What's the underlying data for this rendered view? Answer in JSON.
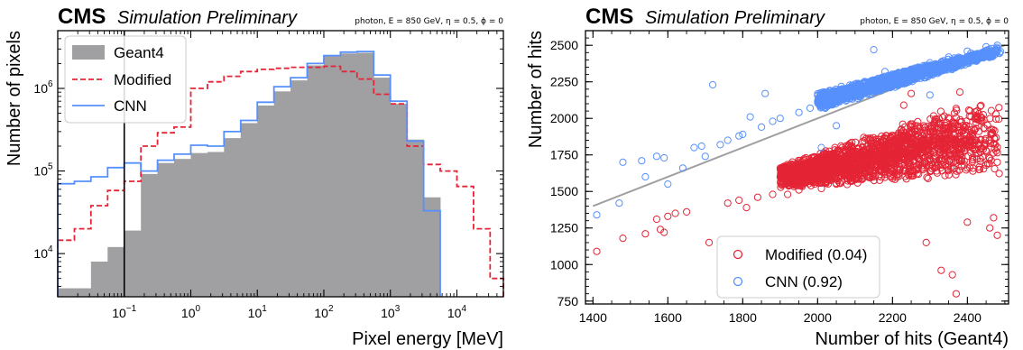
{
  "chart_data": [
    {
      "type": "histogram",
      "experiment": "CMS",
      "status": "Simulation Preliminary",
      "info": "photon, E = 850 GeV, η = 0.5, ϕ = 0",
      "xlabel": "Pixel energy [MeV]",
      "ylabel": "Number of pixels",
      "xscale": "log",
      "yscale": "log",
      "xlim": [
        0.01,
        50000
      ],
      "ylim": [
        3000,
        5000000
      ],
      "x_ticks": [
        {
          "value": 0.1,
          "base": "10",
          "exp": "−1"
        },
        {
          "value": 1,
          "base": "10",
          "exp": "0"
        },
        {
          "value": 10,
          "base": "10",
          "exp": "1"
        },
        {
          "value": 100,
          "base": "10",
          "exp": "2"
        },
        {
          "value": 1000,
          "base": "10",
          "exp": "3"
        },
        {
          "value": 10000,
          "base": "10",
          "exp": "4"
        }
      ],
      "y_ticks": [
        {
          "value": 10000,
          "base": "10",
          "exp": "4"
        },
        {
          "value": 100000,
          "base": "10",
          "exp": "5"
        },
        {
          "value": 1000000,
          "base": "10",
          "exp": "6"
        }
      ],
      "vline": 0.1,
      "bin_edges": [
        0.01,
        0.0178,
        0.0316,
        0.0562,
        0.1,
        0.178,
        0.316,
        0.562,
        1,
        1.78,
        3.16,
        5.62,
        10,
        17.8,
        31.6,
        56.2,
        100,
        178,
        316,
        562,
        1000,
        1780,
        3160,
        5620,
        10000,
        17800,
        31600,
        50000
      ],
      "legend_position": "upper-left",
      "series": [
        {
          "name": "Geant4",
          "style": "filled",
          "color": "#a09fa1",
          "values": [
            3800,
            3800,
            8000,
            12000,
            19000,
            92000,
            125000,
            140000,
            165000,
            170000,
            250000,
            380000,
            620000,
            920000,
            1250000,
            1900000,
            2450000,
            2650000,
            2700000,
            1350000,
            650000,
            240000,
            48000,
            null,
            null,
            null,
            null
          ]
        },
        {
          "name": "Modified",
          "style": "dashed",
          "color": "#e42536",
          "values": [
            14500,
            20000,
            38000,
            58000,
            75000,
            200000,
            290000,
            340000,
            1000000,
            1200000,
            1400000,
            1600000,
            1700000,
            1750000,
            1800000,
            1800000,
            1850000,
            1600000,
            1300000,
            850000,
            650000,
            200000,
            120000,
            100000,
            65000,
            20000,
            5000
          ]
        },
        {
          "name": "CNN",
          "style": "step",
          "color": "#5790fc",
          "values": [
            70000,
            75000,
            85000,
            110000,
            125000,
            100000,
            135000,
            160000,
            205000,
            200000,
            300000,
            410000,
            680000,
            1050000,
            1350000,
            2000000,
            2500000,
            2750000,
            2800000,
            1450000,
            700000,
            230000,
            33000,
            null,
            null,
            null,
            null
          ]
        }
      ]
    },
    {
      "type": "scatter",
      "experiment": "CMS",
      "status": "Simulation Preliminary",
      "info": "photon, E = 850 GeV, η = 0.5, ϕ = 0",
      "xlabel": "Number of hits (Geant4)",
      "ylabel": "Number of hits",
      "xlim": [
        1380,
        2510
      ],
      "ylim": [
        730,
        2600
      ],
      "x_ticks": [
        1400,
        1600,
        1800,
        2000,
        2200,
        2400
      ],
      "y_ticks": [
        750,
        1000,
        1250,
        1500,
        1750,
        2000,
        2250,
        2500
      ],
      "diagonal": {
        "color": "#a09fa1",
        "from": [
          1400,
          1400
        ],
        "to": [
          2500,
          2500
        ]
      },
      "legend_position": "lower-center",
      "series": [
        {
          "name": "Modified (0.04)",
          "color": "#e42536",
          "marker": "open-circle",
          "points": [
            [
              1410,
              1090
            ],
            [
              1480,
              1180
            ],
            [
              1540,
              1210
            ],
            [
              1570,
              1310
            ],
            [
              1580,
              1240
            ],
            [
              1590,
              1220
            ],
            [
              1600,
              1330
            ],
            [
              1620,
              1350
            ],
            [
              1650,
              1360
            ],
            [
              1710,
              1150
            ],
            [
              1760,
              1420
            ],
            [
              1790,
              1440
            ],
            [
              1810,
              1390
            ],
            [
              1840,
              1460
            ],
            [
              1880,
              1480
            ],
            [
              1920,
              1480
            ],
            [
              1950,
              1510
            ],
            [
              2010,
              1520
            ],
            [
              2050,
              1550
            ],
            [
              2100,
              1580
            ],
            [
              2150,
              1600
            ],
            [
              2200,
              1600
            ],
            [
              2250,
              1620
            ],
            [
              2300,
              1640
            ],
            [
              2350,
              1650
            ],
            [
              2400,
              1660
            ],
            [
              2450,
              1680
            ],
            [
              2480,
              1700
            ],
            [
              2330,
              960
            ],
            [
              2360,
              930
            ],
            [
              2370,
              800
            ],
            [
              2290,
              1150
            ],
            [
              2120,
              1090
            ],
            [
              2480,
              1200
            ],
            [
              2460,
              1250
            ],
            [
              2470,
              1320
            ],
            [
              2400,
              1290
            ],
            [
              2230,
              2090
            ],
            [
              2250,
              2170
            ],
            [
              2380,
              2180
            ]
          ],
          "band": {
            "count": 2200,
            "x_range": [
              1900,
              2490
            ],
            "low_at_xmin": 1520,
            "low_at_xmax": 1600,
            "high_at_xmin": 1680,
            "high_at_xmax": 2200
          }
        },
        {
          "name": "CNN (0.92)",
          "color": "#5790fc",
          "marker": "open-circle",
          "points": [
            [
              1410,
              1340
            ],
            [
              1470,
              1420
            ],
            [
              1480,
              1700
            ],
            [
              1530,
              1710
            ],
            [
              1540,
              1600
            ],
            [
              1570,
              1740
            ],
            [
              1590,
              1730
            ],
            [
              1600,
              1550
            ],
            [
              1640,
              1660
            ],
            [
              1670,
              1800
            ],
            [
              1690,
              1810
            ],
            [
              1700,
              1740
            ],
            [
              1720,
              2230
            ],
            [
              1740,
              1820
            ],
            [
              1760,
              1850
            ],
            [
              1790,
              1880
            ],
            [
              1800,
              1890
            ],
            [
              1820,
              2010
            ],
            [
              1850,
              1940
            ],
            [
              1860,
              2170
            ],
            [
              1880,
              1980
            ],
            [
              1900,
              2000
            ],
            [
              1950,
              2040
            ],
            [
              1980,
              2070
            ],
            [
              2020,
              2110
            ],
            [
              2050,
              2140
            ],
            [
              2100,
              2190
            ],
            [
              2150,
              2240
            ],
            [
              2200,
              2290
            ],
            [
              2250,
              2330
            ],
            [
              2300,
              2380
            ],
            [
              2350,
              2420
            ],
            [
              2400,
              2460
            ],
            [
              2450,
              2490
            ],
            [
              2480,
              2500
            ],
            [
              2150,
              2470
            ],
            [
              2050,
              1950
            ],
            [
              2010,
              1800
            ],
            [
              2300,
              2160
            ],
            [
              2180,
              2320
            ]
          ],
          "band": {
            "count": 1600,
            "x_range": [
              2000,
              2490
            ],
            "low_at_xmin": 2050,
            "low_at_xmax": 2430,
            "high_at_xmin": 2180,
            "high_at_xmax": 2500
          }
        }
      ]
    }
  ]
}
